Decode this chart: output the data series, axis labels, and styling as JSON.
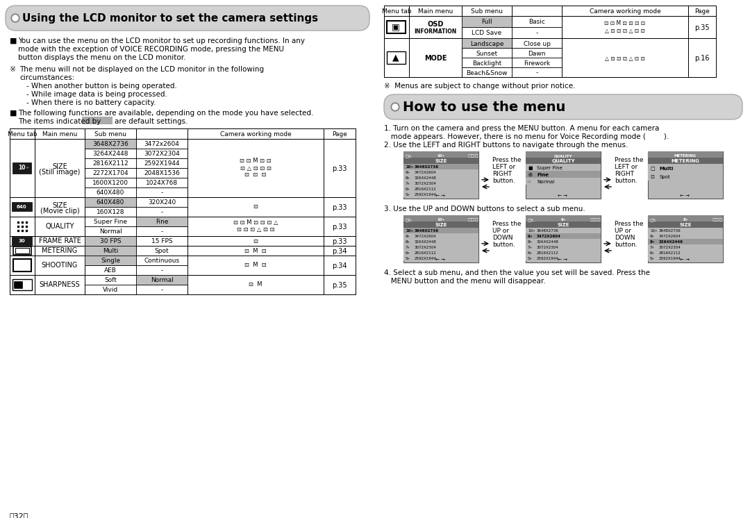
{
  "bg_color": "#ffffff",
  "title1": "Using the LCD monitor to set the camera settings",
  "title2": "How to use the menu",
  "bullet1_line1": "You can use the menu on the LCD monitor to set up recording functions. In any",
  "bullet1_line2": "mode with the exception of VOICE RECORDING mode, pressing the MENU",
  "bullet1_line3": "button displays the menu on the LCD monitor.",
  "note1_line1": "The menu will not be displayed on the LCD monitor in the following",
  "note1_line2": "circumstances:",
  "note1_line3": "- When another button is being operated.",
  "note1_line4": "- While image data is being processed.",
  "note1_line5": "- When there is no battery capacity.",
  "bullet2_line1": "The following functions are available, depending on the mode you have selected.",
  "bullet2_line2_pre": "The items indicated by",
  "bullet2_line2_post": "are default settings.",
  "note2": "Menus are subject to change without prior notice.",
  "step1_line1": "1. Turn on the camera and press the MENU button. A menu for each camera",
  "step1_line2": "   mode appears. However, there is no menu for Voice Recording mode (        ).",
  "step2": "2. Use the LEFT and RIGHT buttons to navigate through the menus.",
  "step3": "3. Use the UP and DOWN buttons to select a sub menu.",
  "step4_line1": "4. Select a sub menu, and then the value you set will be saved. Press the",
  "step4_line2": "   MENU button and the menu will disappear.",
  "press_left_right": [
    "Press the",
    "LEFT or",
    "RIGHT",
    "button."
  ],
  "press_up_down": [
    "Press the",
    "UP or",
    "DOWN",
    "button."
  ],
  "gray_cell": "#c0c0c0",
  "page_num": "<32>"
}
